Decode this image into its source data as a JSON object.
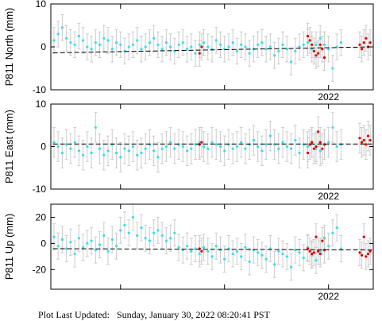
{
  "footer": {
    "label": "Plot Last Updated:",
    "timestamp": "Sunday, January 30, 2022 08:20:41 PST"
  },
  "colors": {
    "historical_points": "#33e0ee",
    "recent_points": "#dd0000",
    "error_bars": "#cccccc",
    "trend_line": "#000000",
    "frame": "#000000"
  },
  "chart_data": [
    {
      "type": "scatter",
      "ylabel": "P811 North (mm)",
      "ylim": [
        -10,
        10
      ],
      "yticks": [
        -10,
        0,
        10
      ],
      "x_range": [
        2019.33,
        2022.43
      ],
      "xtick_label": "2022",
      "xtick_value": 2022.0,
      "grid": false,
      "trend": {
        "x": [
          2019.35,
          2022.42
        ],
        "y": [
          -1.4,
          0.0
        ]
      },
      "error_bar_halfwidth": 3.0,
      "series": [
        {
          "color": "cyan",
          "x": [
            2019.36,
            2019.4,
            2019.44,
            2019.48,
            2019.52,
            2019.56,
            2019.6,
            2019.64,
            2019.68,
            2019.72,
            2019.76,
            2019.8,
            2019.84,
            2019.88,
            2019.92,
            2019.96,
            2020.0,
            2020.04,
            2020.08,
            2020.12,
            2020.16,
            2020.2,
            2020.24,
            2020.28,
            2020.32,
            2020.36,
            2020.4,
            2020.44,
            2020.48,
            2020.52,
            2020.56,
            2020.6,
            2020.64,
            2020.68,
            2020.72,
            2020.76,
            2020.8,
            2020.84,
            2020.88,
            2020.92,
            2020.96,
            2021.0,
            2021.04,
            2021.08,
            2021.12,
            2021.16,
            2021.2,
            2021.24,
            2021.28,
            2021.32,
            2021.36,
            2021.4,
            2021.44,
            2021.48,
            2021.52,
            2021.56,
            2021.6,
            2021.64,
            2021.68,
            2021.72,
            2021.76,
            2021.8,
            2021.84,
            2021.88,
            2021.92,
            2021.96,
            2022.0,
            2022.04,
            2022.08,
            2022.12
          ],
          "y": [
            1.5,
            3.0,
            4.5,
            2.0,
            1.0,
            0.5,
            2.5,
            1.5,
            0.0,
            -0.5,
            1.0,
            0.5,
            2.0,
            1.5,
            -0.5,
            1.0,
            0.5,
            -1.0,
            0.0,
            0.5,
            1.5,
            -0.5,
            0.0,
            1.0,
            2.0,
            0.5,
            -0.5,
            1.0,
            0.0,
            -1.0,
            0.5,
            1.0,
            -0.5,
            0.0,
            -1.5,
            0.5,
            1.0,
            0.0,
            -0.5,
            1.5,
            0.5,
            -0.5,
            0.0,
            1.0,
            -1.0,
            0.5,
            0.0,
            -1.5,
            -0.5,
            0.5,
            1.0,
            -0.5,
            0.0,
            -2.0,
            -1.0,
            0.5,
            -0.5,
            -3.5,
            -1.0,
            0.0,
            0.5,
            1.0,
            -0.5,
            0.5,
            2.0,
            0.5,
            -0.5,
            -5.0,
            0.0,
            1.0
          ]
        },
        {
          "color": "red",
          "x": [
            2020.76,
            2020.78,
            2021.8,
            2021.82,
            2021.84,
            2021.86,
            2021.88,
            2021.9,
            2021.92,
            2021.94,
            2021.96,
            2022.3,
            2022.32,
            2022.34,
            2022.36,
            2022.38,
            2022.4
          ],
          "y": [
            -1.5,
            0.0,
            2.5,
            1.5,
            0.5,
            -1.0,
            -2.0,
            -1.5,
            0.5,
            -0.5,
            -2.5,
            0.5,
            -0.5,
            1.0,
            2.0,
            0.0,
            1.0
          ]
        }
      ]
    },
    {
      "type": "scatter",
      "ylabel": "P811 East (mm)",
      "ylim": [
        -10,
        10
      ],
      "yticks": [
        -10,
        0,
        10
      ],
      "x_range": [
        2019.33,
        2022.43
      ],
      "xtick_label": "2022",
      "xtick_value": 2022.0,
      "grid": false,
      "trend": {
        "x": [
          2019.35,
          2022.42
        ],
        "y": [
          0.6,
          0.6
        ]
      },
      "error_bar_halfwidth": 3.5,
      "series": [
        {
          "color": "cyan",
          "x": [
            2019.36,
            2019.4,
            2019.44,
            2019.48,
            2019.52,
            2019.56,
            2019.6,
            2019.64,
            2019.68,
            2019.72,
            2019.76,
            2019.8,
            2019.84,
            2019.88,
            2019.92,
            2019.96,
            2020.0,
            2020.04,
            2020.08,
            2020.12,
            2020.16,
            2020.2,
            2020.24,
            2020.28,
            2020.32,
            2020.36,
            2020.4,
            2020.44,
            2020.48,
            2020.52,
            2020.56,
            2020.6,
            2020.64,
            2020.68,
            2020.72,
            2020.76,
            2020.8,
            2020.84,
            2020.88,
            2020.92,
            2020.96,
            2021.0,
            2021.04,
            2021.08,
            2021.12,
            2021.16,
            2021.2,
            2021.24,
            2021.28,
            2021.32,
            2021.36,
            2021.4,
            2021.44,
            2021.48,
            2021.52,
            2021.56,
            2021.6,
            2021.64,
            2021.68,
            2021.72,
            2021.76,
            2021.8,
            2021.84,
            2021.88,
            2021.92,
            2021.96,
            2022.0,
            2022.04,
            2022.08,
            2022.12
          ],
          "y": [
            1.0,
            0.0,
            -1.5,
            0.5,
            -0.5,
            1.0,
            -1.0,
            -2.0,
            0.0,
            -1.5,
            4.5,
            -0.5,
            -2.0,
            -1.0,
            0.5,
            -1.5,
            -2.5,
            -0.5,
            -1.0,
            0.0,
            -2.0,
            -1.5,
            -0.5,
            0.5,
            -1.0,
            -2.5,
            -0.5,
            0.0,
            1.0,
            -0.5,
            0.5,
            0.0,
            -1.0,
            -0.5,
            0.5,
            1.0,
            0.0,
            -0.5,
            1.0,
            0.5,
            0.0,
            -1.0,
            0.5,
            -0.5,
            0.0,
            1.0,
            -0.5,
            0.5,
            1.5,
            0.0,
            -1.0,
            0.5,
            2.5,
            0.5,
            -0.5,
            1.0,
            0.0,
            -0.5,
            1.5,
            -1.5,
            0.5,
            0.0,
            1.0,
            -0.5,
            -1.0,
            0.5,
            1.0,
            4.5,
            0.0,
            0.5
          ]
        },
        {
          "color": "red",
          "x": [
            2020.76,
            2020.78,
            2021.8,
            2021.82,
            2021.84,
            2021.86,
            2021.88,
            2021.9,
            2021.92,
            2021.94,
            2021.96,
            2022.3,
            2022.32,
            2022.34,
            2022.36,
            2022.38,
            2022.4
          ],
          "y": [
            0.5,
            1.0,
            -1.5,
            0.5,
            1.0,
            -0.5,
            0.0,
            3.5,
            1.0,
            -0.5,
            0.5,
            2.0,
            1.0,
            1.5,
            0.5,
            2.5,
            1.5
          ]
        }
      ]
    },
    {
      "type": "scatter",
      "ylabel": "P811 Up (mm)",
      "ylim": [
        -35,
        30
      ],
      "yticks": [
        -20,
        0,
        20
      ],
      "x_range": [
        2019.33,
        2022.43
      ],
      "xtick_label": "2022",
      "xtick_value": 2022.0,
      "grid": false,
      "trend": {
        "x": [
          2019.35,
          2022.42
        ],
        "y": [
          -4.0,
          -5.0
        ]
      },
      "error_bar_halfwidth": 10.0,
      "series": [
        {
          "color": "cyan",
          "x": [
            2019.36,
            2019.4,
            2019.44,
            2019.48,
            2019.52,
            2019.56,
            2019.6,
            2019.64,
            2019.68,
            2019.72,
            2019.76,
            2019.8,
            2019.84,
            2019.88,
            2019.92,
            2019.96,
            2020.0,
            2020.04,
            2020.08,
            2020.12,
            2020.16,
            2020.2,
            2020.24,
            2020.28,
            2020.32,
            2020.36,
            2020.4,
            2020.44,
            2020.48,
            2020.52,
            2020.56,
            2020.6,
            2020.64,
            2020.68,
            2020.72,
            2020.76,
            2020.8,
            2020.84,
            2020.88,
            2020.92,
            2020.96,
            2021.0,
            2021.04,
            2021.08,
            2021.12,
            2021.16,
            2021.2,
            2021.24,
            2021.28,
            2021.32,
            2021.36,
            2021.4,
            2021.44,
            2021.48,
            2021.52,
            2021.56,
            2021.6,
            2021.64,
            2021.68,
            2021.72,
            2021.76,
            2021.8,
            2021.84,
            2021.88,
            2021.92,
            2021.96,
            2022.0,
            2022.04,
            2022.08,
            2022.12
          ],
          "y": [
            5.0,
            -2.0,
            3.0,
            -4.0,
            1.0,
            -8.0,
            4.0,
            -3.0,
            0.0,
            2.0,
            -5.0,
            -1.0,
            6.0,
            -6.0,
            3.0,
            -2.0,
            10.0,
            14.0,
            8.0,
            20.0,
            6.0,
            12.0,
            4.0,
            2.0,
            8.0,
            10.0,
            6.0,
            2.0,
            4.0,
            8.0,
            -3.0,
            -5.0,
            -2.0,
            -6.0,
            -4.0,
            -8.0,
            -3.0,
            -6.0,
            -10.0,
            -2.0,
            -5.0,
            -12.0,
            -4.0,
            -8.0,
            -6.0,
            -10.0,
            -3.0,
            -14.0,
            -5.0,
            -7.0,
            -9.0,
            -12.0,
            -4.0,
            -16.0,
            -6.0,
            -8.0,
            -10.0,
            -18.0,
            -5.0,
            -7.0,
            -11.0,
            -3.0,
            -9.0,
            -13.0,
            -6.0,
            4.0,
            -2.0,
            8.0,
            12.0,
            -4.0
          ]
        },
        {
          "color": "red",
          "x": [
            2020.76,
            2020.78,
            2021.8,
            2021.82,
            2021.84,
            2021.86,
            2021.88,
            2021.9,
            2021.92,
            2021.94,
            2021.96,
            2022.3,
            2022.32,
            2022.34,
            2022.36,
            2022.38,
            2022.4
          ],
          "y": [
            -4.0,
            -6.0,
            -4.0,
            -6.0,
            -8.0,
            -7.0,
            5.0,
            -6.0,
            -8.0,
            2.0,
            -5.0,
            -7.0,
            -9.0,
            5.0,
            -10.0,
            -8.0,
            -6.0
          ]
        }
      ]
    }
  ]
}
